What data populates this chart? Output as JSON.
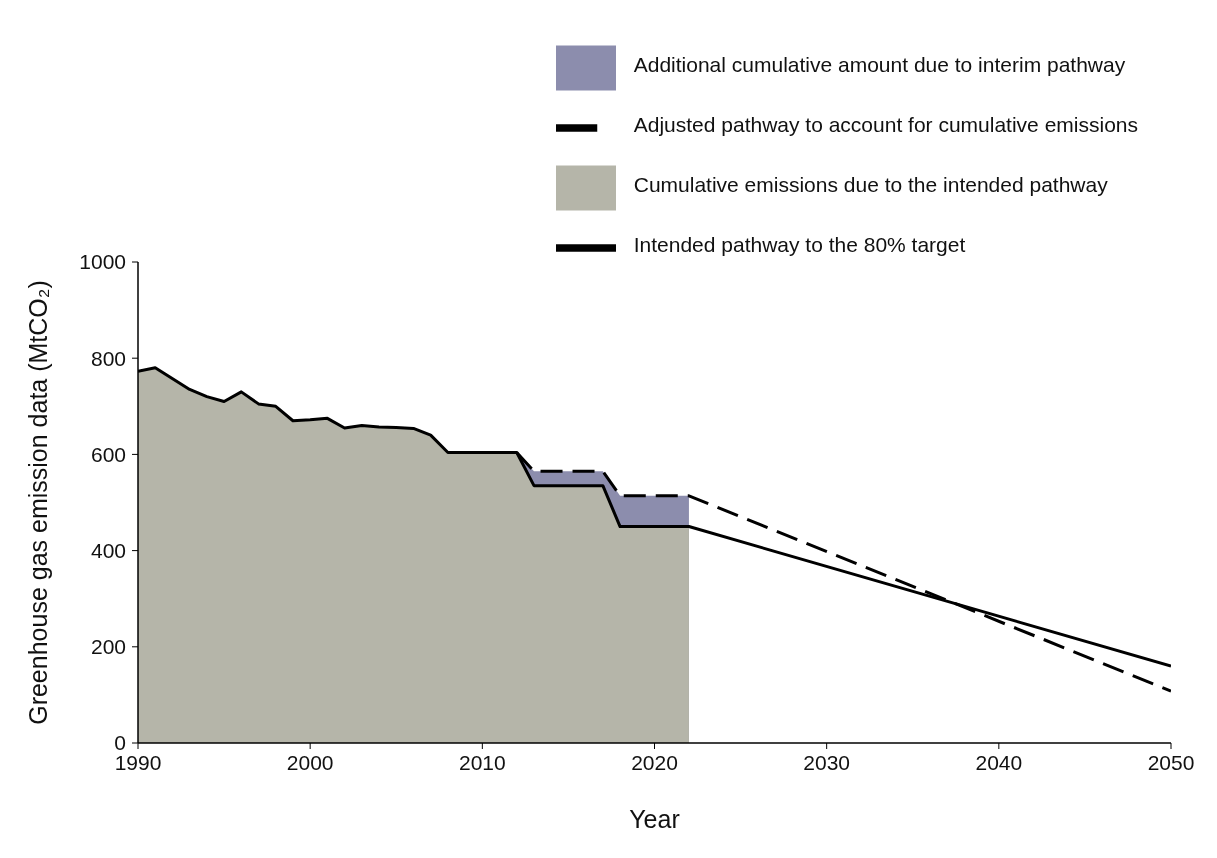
{
  "chart_data": {
    "type": "line",
    "xlabel": "Year",
    "ylabel": "Greenhouse gas emission data (MtCO₂)",
    "xlim": [
      1990,
      2050
    ],
    "xticks": [
      1990,
      2000,
      2010,
      2020,
      2030,
      2040,
      2050
    ],
    "ylim": [
      0,
      1000
    ],
    "yticks": [
      0,
      200,
      400,
      600,
      800,
      1000
    ],
    "grid": false,
    "legend": "top right",
    "series": [
      {
        "name": "Additional cumulative amount due to interim pathway",
        "type": "area",
        "color": "#8c8dad",
        "x": [
          2012,
          2013,
          2017,
          2018,
          2022
        ],
        "values": [
          604,
          565,
          565,
          514,
          514
        ]
      },
      {
        "name": "Cumulative emissions due to the intended pathway",
        "type": "area",
        "color": "#b5b5a9",
        "x": [
          1990,
          1991,
          1993,
          1994,
          1995,
          1996,
          1997,
          1998,
          1999,
          2000,
          2001,
          2002,
          2003,
          2004,
          2005,
          2006,
          2007,
          2008,
          2012,
          2013,
          2017,
          2018,
          2022
        ],
        "values": [
          773,
          780,
          735,
          720,
          710,
          730,
          705,
          700,
          670,
          672,
          675,
          655,
          660,
          657,
          656,
          654,
          640,
          604,
          604,
          535,
          535,
          450,
          450
        ]
      },
      {
        "name": "Intended pathway to the 80% target",
        "color": "#000000",
        "line_style": "solid",
        "x": [
          1990,
          1991,
          1993,
          1994,
          1995,
          1996,
          1997,
          1998,
          1999,
          2000,
          2001,
          2002,
          2003,
          2004,
          2005,
          2006,
          2007,
          2008,
          2012,
          2013,
          2017,
          2018,
          2022,
          2050
        ],
        "values": [
          773,
          780,
          735,
          720,
          710,
          730,
          705,
          700,
          670,
          672,
          675,
          655,
          660,
          657,
          656,
          654,
          640,
          604,
          604,
          535,
          535,
          450,
          450,
          160
        ]
      },
      {
        "name": "Adjusted pathway to account for cumulative emissions",
        "color": "#000000",
        "line_style": "dashed",
        "x": [
          2012,
          2013,
          2017,
          2018,
          2022,
          2050
        ],
        "values": [
          604,
          565,
          565,
          514,
          514,
          108
        ]
      }
    ]
  }
}
